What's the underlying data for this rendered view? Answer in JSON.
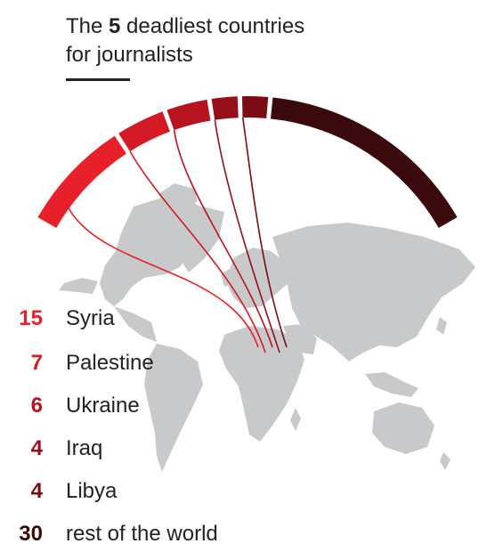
{
  "title": {
    "prefix": "The ",
    "bold": "5",
    "suffix": " deadliest countries",
    "line2": "for journalists"
  },
  "chart_data": {
    "type": "pie",
    "title": "The 5 deadliest countries for journalists",
    "categories": [
      "Syria",
      "Palestine",
      "Ukraine",
      "Iraq",
      "Libya",
      "rest of the world"
    ],
    "values": [
      15,
      7,
      6,
      4,
      4,
      30
    ],
    "colors": [
      "#e8202a",
      "#d31a25",
      "#b8141f",
      "#961019",
      "#7c0c14",
      "#3b0a0c"
    ],
    "series": [
      {
        "name": "Syria",
        "value": 15
      },
      {
        "name": "Palestine",
        "value": 7
      },
      {
        "name": "Ukraine",
        "value": 6
      },
      {
        "name": "Iraq",
        "value": 4
      },
      {
        "name": "Libya",
        "value": 4
      },
      {
        "name": "rest of the world",
        "value": 30
      }
    ]
  },
  "map_color": "#c8c9cb"
}
